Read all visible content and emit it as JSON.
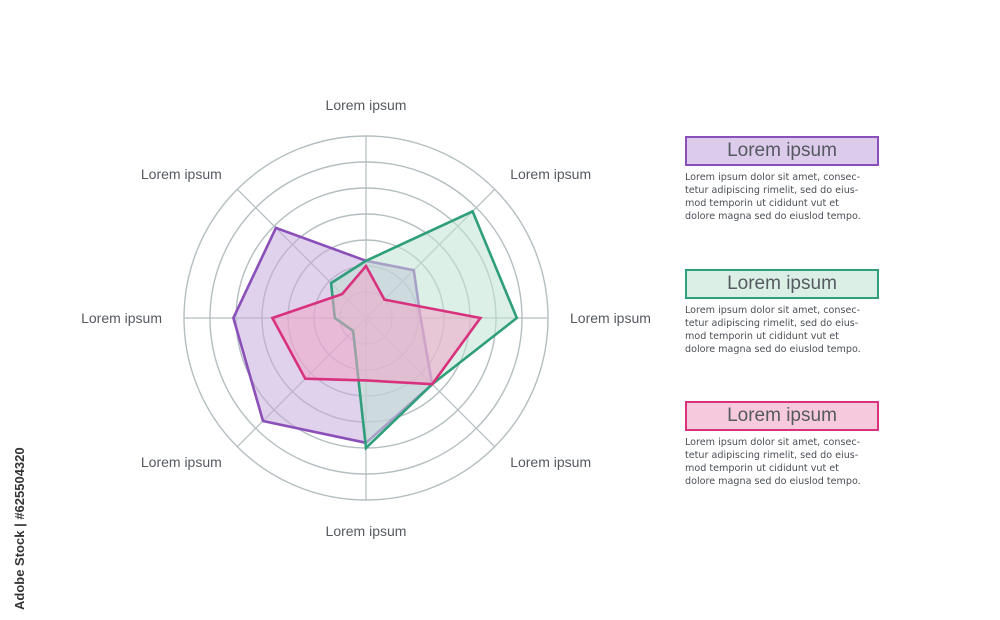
{
  "chart_data": {
    "type": "radar",
    "categories": [
      "Lorem ipsum",
      "Lorem ipsum",
      "Lorem ipsum",
      "Lorem ipsum",
      "Lorem ipsum",
      "Lorem ipsum",
      "Lorem ipsum",
      "Lorem ipsum"
    ],
    "rlim": [
      0,
      7
    ],
    "rings": 7,
    "series": [
      {
        "color": "#8a4fb8",
        "fill": "#c6abdc",
        "values": [
          2.2,
          2.6,
          2.1,
          3.6,
          4.8,
          5.6,
          5.1,
          4.9
        ]
      },
      {
        "color": "#2f9e7a",
        "fill": "#bfe3d4",
        "values": [
          2.2,
          5.8,
          5.8,
          3.6,
          5.0,
          0.7,
          1.2,
          1.9
        ]
      },
      {
        "color": "#d8327e",
        "fill": "#f0a6c8",
        "values": [
          2.0,
          1.0,
          4.4,
          3.6,
          2.4,
          3.3,
          3.6,
          1.3
        ]
      }
    ]
  },
  "legend": [
    {
      "title": "Lorem ipsum",
      "color": "#8a4fb8",
      "bg": "#dccbea",
      "lines": [
        "Lorem ipsum dolor sit amet, consec-",
        "tetur adipiscing rimelit, sed do eius-",
        "mod temporin ut cididunt vut et",
        "dolore magna sed do eiuslod tempo."
      ]
    },
    {
      "title": "Lorem ipsum",
      "color": "#2f9e7a",
      "bg": "#dcefe6",
      "lines": [
        "Lorem ipsum dolor sit amet, consec-",
        "tetur adipiscing rimelit, sed do eius-",
        "mod temporin ut cididunt vut et",
        "dolore magna sed do eiuslod tempo."
      ]
    },
    {
      "title": "Lorem ipsum",
      "color": "#d8327e",
      "bg": "#f7c9dd",
      "lines": [
        "Lorem ipsum dolor sit amet, consec-",
        "tetur adipiscing rimelit, sed do eius-",
        "mod temporin ut cididunt vut et",
        "dolore magna sed do eiuslod tempo."
      ]
    }
  ],
  "side_credit": "Adobe Stock | #625504320",
  "colors": {
    "grid": "#b4bec0",
    "label": "#555a60"
  }
}
